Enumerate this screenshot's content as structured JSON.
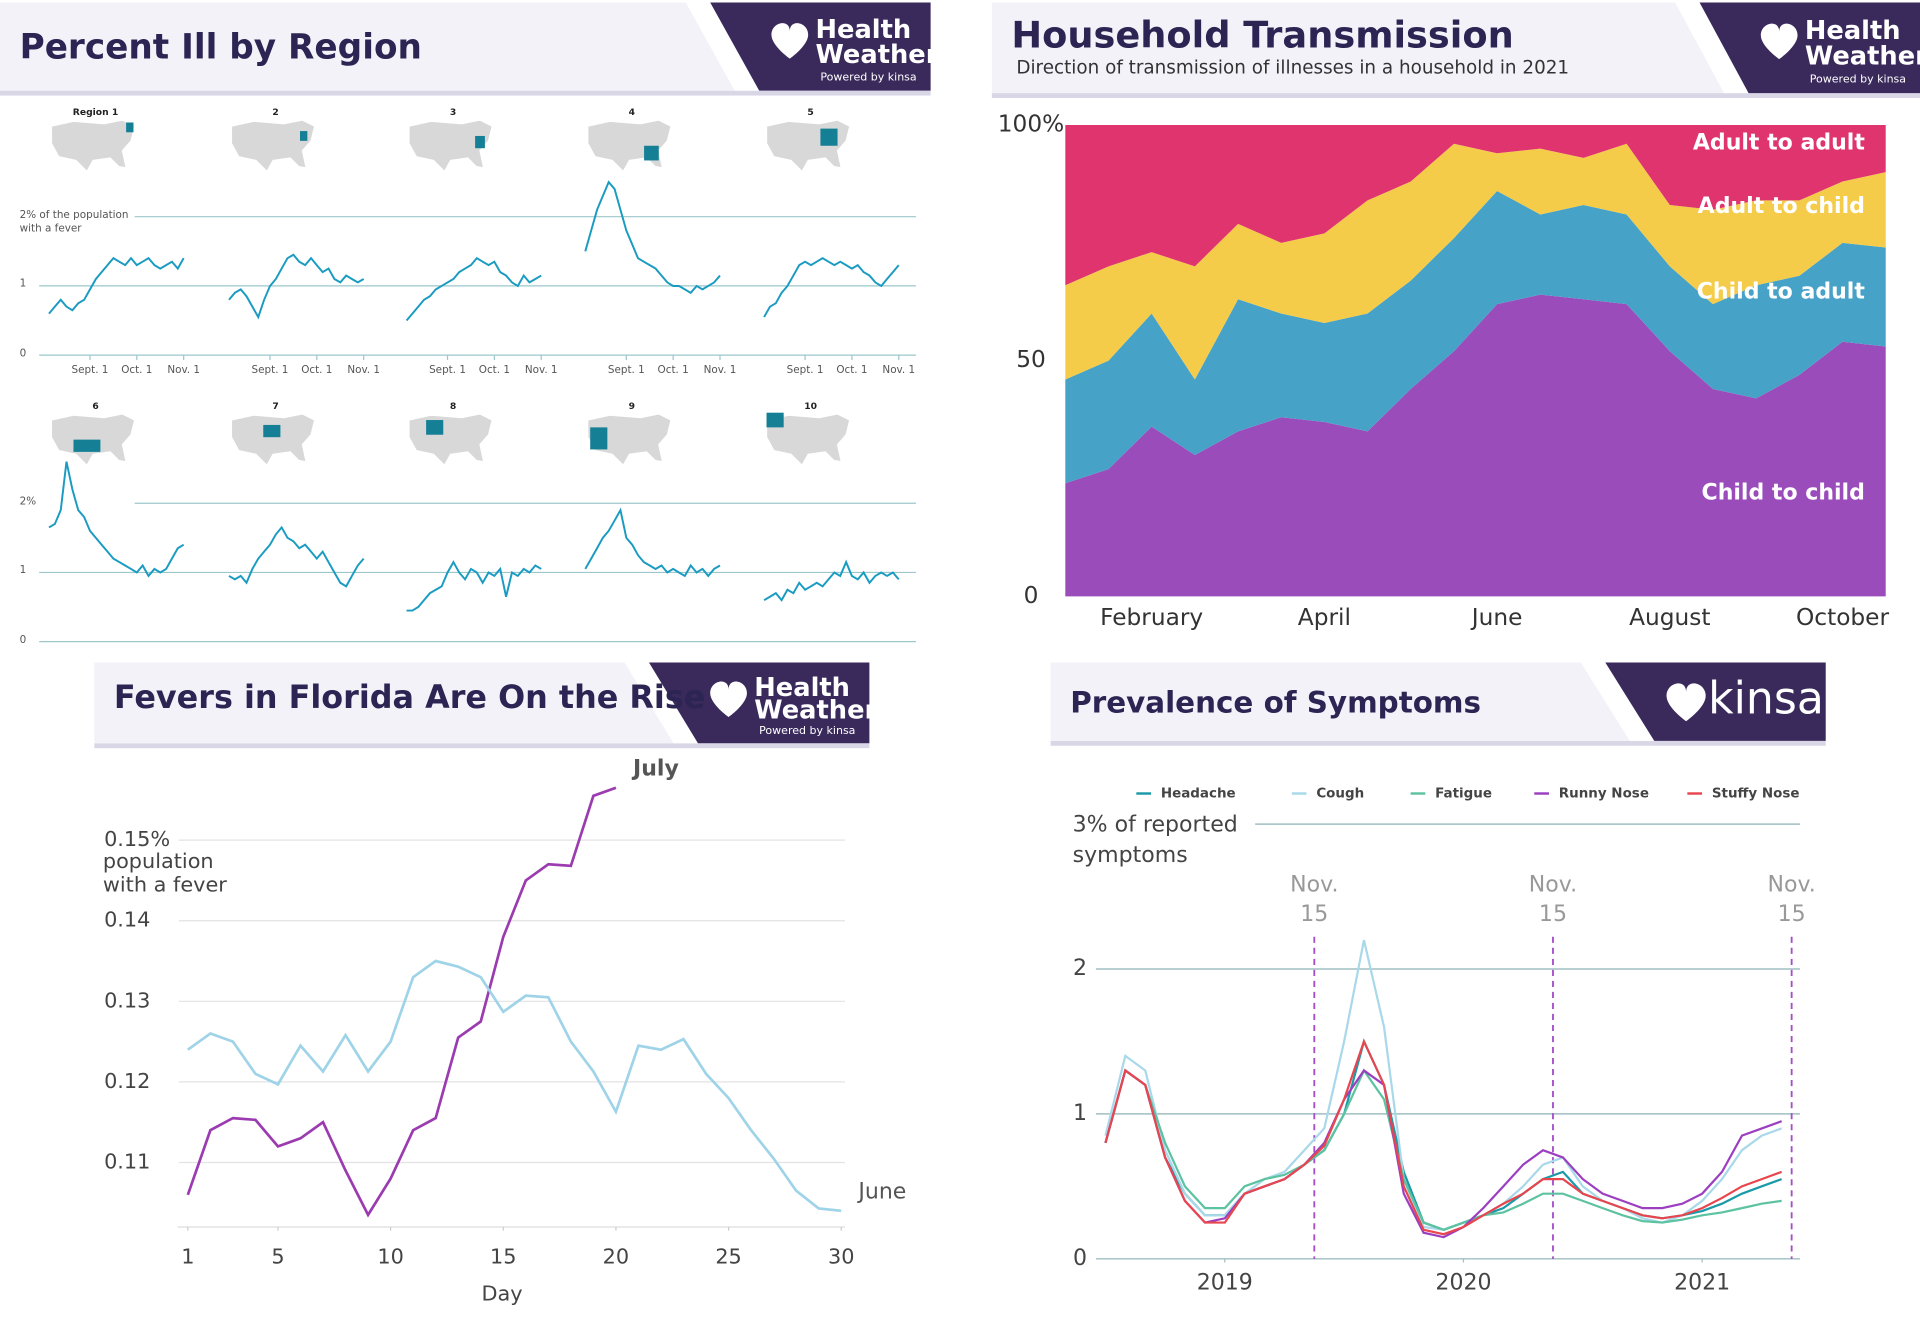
{
  "chart_data": [
    {
      "type": "small-multiples",
      "title": "Percent Ill by Region",
      "brand": {
        "line1": "Health",
        "line2": "Weather",
        "tagline": "Powered by kinsa"
      },
      "color": "#1a9bc1",
      "xlim": [
        0,
        23
      ],
      "ylim": [
        0,
        2.6
      ],
      "xticks": [
        {
          "value": 7,
          "label": "Sept. 1"
        },
        {
          "value": 15,
          "label": "Oct. 1"
        },
        {
          "value": 23,
          "label": "Nov. 1"
        }
      ],
      "rows": [
        {
          "yticks": [
            0,
            1,
            {
              "value": 2,
              "label": "2% of the population with a fever"
            }
          ],
          "series": [
            {
              "name": "Region 1",
              "values": [
                0.6,
                0.7,
                0.8,
                0.7,
                0.65,
                0.75,
                0.8,
                0.95,
                1.1,
                1.2,
                1.3,
                1.4,
                1.35,
                1.3,
                1.4,
                1.3,
                1.35,
                1.4,
                1.3,
                1.25,
                1.3,
                1.35,
                1.25,
                1.4
              ]
            },
            {
              "name": "2",
              "values": [
                0.8,
                0.9,
                0.95,
                0.85,
                0.7,
                0.55,
                0.8,
                1.0,
                1.1,
                1.25,
                1.4,
                1.45,
                1.35,
                1.3,
                1.4,
                1.3,
                1.2,
                1.25,
                1.1,
                1.05,
                1.15,
                1.1,
                1.05,
                1.1
              ]
            },
            {
              "name": "3",
              "values": [
                0.5,
                0.6,
                0.7,
                0.8,
                0.85,
                0.95,
                1.0,
                1.05,
                1.1,
                1.2,
                1.25,
                1.3,
                1.4,
                1.35,
                1.3,
                1.35,
                1.2,
                1.15,
                1.05,
                1.0,
                1.15,
                1.05,
                1.1,
                1.15
              ]
            },
            {
              "name": "4",
              "values": [
                1.5,
                1.8,
                2.1,
                2.3,
                2.5,
                2.4,
                2.1,
                1.8,
                1.6,
                1.4,
                1.35,
                1.3,
                1.25,
                1.15,
                1.05,
                1.0,
                1.0,
                0.95,
                0.9,
                1.0,
                0.95,
                1.0,
                1.05,
                1.15
              ]
            },
            {
              "name": "5",
              "values": [
                0.55,
                0.7,
                0.75,
                0.9,
                1.0,
                1.15,
                1.3,
                1.35,
                1.3,
                1.35,
                1.4,
                1.35,
                1.3,
                1.35,
                1.3,
                1.25,
                1.3,
                1.2,
                1.15,
                1.05,
                1.0,
                1.1,
                1.2,
                1.3
              ]
            }
          ]
        },
        {
          "yticks": [
            0,
            1,
            {
              "value": 2,
              "label": "2%"
            }
          ],
          "series": [
            {
              "name": "6",
              "values": [
                1.65,
                1.7,
                1.9,
                2.6,
                2.2,
                1.9,
                1.8,
                1.6,
                1.5,
                1.4,
                1.3,
                1.2,
                1.15,
                1.1,
                1.05,
                1.0,
                1.1,
                0.95,
                1.05,
                1.0,
                1.05,
                1.2,
                1.35,
                1.4
              ]
            },
            {
              "name": "7",
              "values": [
                0.95,
                0.9,
                0.95,
                0.85,
                1.05,
                1.2,
                1.3,
                1.4,
                1.55,
                1.65,
                1.5,
                1.45,
                1.35,
                1.4,
                1.3,
                1.2,
                1.3,
                1.15,
                1.0,
                0.85,
                0.8,
                0.95,
                1.1,
                1.2
              ]
            },
            {
              "name": "8",
              "values": [
                0.45,
                0.45,
                0.5,
                0.6,
                0.7,
                0.75,
                0.8,
                1.0,
                1.15,
                1.0,
                0.9,
                1.05,
                1.0,
                0.85,
                1.0,
                0.95,
                1.05,
                0.65,
                1.0,
                0.95,
                1.05,
                1.0,
                1.1,
                1.05
              ]
            },
            {
              "name": "9",
              "values": [
                1.05,
                1.2,
                1.35,
                1.5,
                1.6,
                1.75,
                1.9,
                1.5,
                1.4,
                1.25,
                1.15,
                1.1,
                1.05,
                1.1,
                1.0,
                1.05,
                1.0,
                0.95,
                1.1,
                1.0,
                1.05,
                0.95,
                1.05,
                1.1
              ]
            },
            {
              "name": "10",
              "values": [
                0.6,
                0.65,
                0.7,
                0.6,
                0.75,
                0.7,
                0.85,
                0.75,
                0.8,
                0.85,
                0.8,
                0.9,
                1.0,
                0.95,
                1.15,
                0.95,
                0.9,
                1.0,
                0.85,
                0.95,
                1.0,
                0.95,
                1.0,
                0.9
              ]
            }
          ]
        }
      ]
    },
    {
      "type": "stacked-area",
      "title": "Household Transmission",
      "subtitle": "Direction of transmission of illnesses in a household in 2021",
      "brand": {
        "line1": "Health",
        "line2": "Weather",
        "tagline": "Powered by kinsa"
      },
      "categories": [
        null,
        null,
        "February",
        null,
        null,
        null,
        "April",
        null,
        null,
        null,
        "June",
        null,
        null,
        null,
        "August",
        null,
        null,
        null,
        "October",
        null
      ],
      "ylim": [
        0,
        100
      ],
      "yticks": [
        {
          "value": 100,
          "label": "100%"
        },
        50,
        0
      ],
      "series": [
        {
          "name": "Child to child",
          "color": "#9a4cba",
          "values": [
            24,
            27,
            36,
            30,
            35,
            38,
            37,
            35,
            44,
            52,
            62,
            64,
            63,
            62,
            52,
            44,
            42,
            47,
            54,
            53
          ]
        },
        {
          "name": "Child to adult",
          "color": "#47a2c8",
          "values": [
            22,
            23,
            24,
            16,
            28,
            22,
            21,
            25,
            23,
            24,
            24,
            17,
            20,
            19,
            18,
            18,
            24,
            21,
            21,
            21
          ]
        },
        {
          "name": "Adult to child",
          "color": "#f4cc4a",
          "values": [
            20,
            20,
            13,
            24,
            16,
            15,
            19,
            24,
            21,
            20,
            8,
            14,
            10,
            15,
            13,
            20,
            18,
            16,
            13,
            16
          ]
        },
        {
          "name": "Adult to adult",
          "color": "#e0346f",
          "values": [
            34,
            30,
            27,
            30,
            21,
            25,
            23,
            16,
            12,
            4,
            6,
            5,
            7,
            4,
            17,
            18,
            16,
            16,
            12,
            10
          ]
        }
      ]
    },
    {
      "type": "line",
      "title": "Fevers in Florida Are On the Rise",
      "brand": {
        "line1": "Health",
        "line2": "Weather",
        "tagline": "Powered by kinsa"
      },
      "x_label": "Day",
      "y_annotation": "population with a fever",
      "x": [
        1,
        2,
        3,
        4,
        5,
        6,
        7,
        8,
        9,
        10,
        11,
        12,
        13,
        14,
        15,
        16,
        17,
        18,
        19,
        20,
        21,
        22,
        23,
        24,
        25,
        26,
        27,
        28,
        29,
        30
      ],
      "xlim": [
        0,
        30
      ],
      "xticks": [
        1,
        5,
        10,
        15,
        20,
        25,
        30
      ],
      "ylim": [
        0.102,
        0.157
      ],
      "yticks": [
        0.11,
        0.12,
        0.13,
        0.14,
        {
          "value": 0.15,
          "label": "0.15%"
        }
      ],
      "grid": true,
      "series": [
        {
          "name": "July",
          "color": "#9b3bb0",
          "values": [
            0.106,
            0.114,
            0.1155,
            0.1153,
            0.112,
            0.113,
            0.115,
            0.109,
            0.1035,
            0.108,
            0.114,
            0.1155,
            0.1255,
            0.1275,
            0.138,
            0.145,
            0.147,
            0.1468,
            0.1555,
            0.1565,
            null,
            null,
            null,
            null,
            null,
            null,
            null,
            null,
            null,
            null
          ]
        },
        {
          "name": "June",
          "color": "#9fd3e8",
          "values": [
            0.124,
            0.126,
            0.125,
            0.121,
            0.1197,
            0.1245,
            0.1213,
            0.1258,
            0.1213,
            0.125,
            0.133,
            0.135,
            0.1343,
            0.133,
            0.1287,
            0.1307,
            0.1305,
            0.125,
            0.1213,
            0.1163,
            0.1245,
            0.124,
            0.1253,
            0.121,
            0.118,
            0.114,
            0.1105,
            0.1065,
            0.1043,
            0.104
          ]
        }
      ]
    },
    {
      "type": "line",
      "title": "Prevalence of Symptoms",
      "brand": {
        "line1": "kinsa"
      },
      "x": [
        2019,
        2019.083,
        2019.167,
        2019.25,
        2019.333,
        2019.417,
        2019.5,
        2019.583,
        2019.667,
        2019.75,
        2019.833,
        2019.917,
        2020,
        2020.083,
        2020.167,
        2020.25,
        2020.333,
        2020.417,
        2020.5,
        2020.583,
        2020.667,
        2020.75,
        2020.833,
        2020.917,
        2021,
        2021.083,
        2021.167,
        2021.25,
        2021.333,
        2021.417,
        2021.5,
        2021.583,
        2021.667,
        2021.75,
        2021.833
      ],
      "xlim": [
        2018.96,
        2021.91
      ],
      "xticks": [
        {
          "value": 2019.5,
          "label": "2019"
        },
        {
          "value": 2020.5,
          "label": "2020"
        },
        {
          "value": 2021.5,
          "label": "2021"
        }
      ],
      "ylim": [
        0,
        3
      ],
      "yticks": [
        0,
        1,
        2,
        {
          "value": 3,
          "label": "3% of reported symptoms"
        }
      ],
      "grid": true,
      "annotations": [
        {
          "text": "Nov. 15",
          "x": 2019.875
        },
        {
          "text": "Nov. 15",
          "x": 2020.875
        },
        {
          "text": "Nov. 15",
          "x": 2021.875
        }
      ],
      "series": [
        {
          "name": "Headache",
          "color": "#1a9aa8",
          "values": [
            0.8,
            1.3,
            1.2,
            0.7,
            0.45,
            0.3,
            0.3,
            0.45,
            0.5,
            0.55,
            0.65,
            0.75,
            1.0,
            1.5,
            1.2,
            0.6,
            0.25,
            0.2,
            0.25,
            0.3,
            0.35,
            0.45,
            0.55,
            0.6,
            0.45,
            0.4,
            0.35,
            0.3,
            0.28,
            0.3,
            0.33,
            0.38,
            0.45,
            0.5,
            0.55
          ]
        },
        {
          "name": "Cough",
          "color": "#a8d8ea",
          "values": [
            0.85,
            1.4,
            1.3,
            0.75,
            0.45,
            0.3,
            0.3,
            0.45,
            0.55,
            0.6,
            0.75,
            0.9,
            1.5,
            2.2,
            1.6,
            0.55,
            0.22,
            0.2,
            0.25,
            0.3,
            0.38,
            0.5,
            0.65,
            0.7,
            0.5,
            0.4,
            0.35,
            0.28,
            0.25,
            0.3,
            0.4,
            0.55,
            0.75,
            0.85,
            0.9
          ]
        },
        {
          "name": "Fatigue",
          "color": "#5cc2a0",
          "values": [
            0.8,
            1.3,
            1.2,
            0.8,
            0.5,
            0.35,
            0.35,
            0.5,
            0.55,
            0.58,
            0.65,
            0.75,
            1.0,
            1.3,
            1.1,
            0.55,
            0.25,
            0.2,
            0.25,
            0.3,
            0.32,
            0.38,
            0.45,
            0.45,
            0.4,
            0.35,
            0.3,
            0.26,
            0.25,
            0.27,
            0.3,
            0.32,
            0.35,
            0.38,
            0.4
          ]
        },
        {
          "name": "Runny Nose",
          "color": "#9b3fc0",
          "values": [
            0.8,
            1.3,
            1.2,
            0.7,
            0.4,
            0.25,
            0.28,
            0.45,
            0.5,
            0.55,
            0.65,
            0.8,
            1.1,
            1.3,
            1.2,
            0.45,
            0.18,
            0.15,
            0.22,
            0.35,
            0.5,
            0.65,
            0.75,
            0.7,
            0.55,
            0.45,
            0.4,
            0.35,
            0.35,
            0.38,
            0.45,
            0.6,
            0.85,
            0.9,
            0.95
          ]
        },
        {
          "name": "Stuffy Nose",
          "color": "#e8464e",
          "values": [
            0.8,
            1.3,
            1.2,
            0.7,
            0.4,
            0.25,
            0.25,
            0.45,
            0.5,
            0.55,
            0.65,
            0.78,
            1.1,
            1.5,
            1.2,
            0.5,
            0.2,
            0.17,
            0.22,
            0.3,
            0.38,
            0.45,
            0.55,
            0.55,
            0.45,
            0.4,
            0.35,
            0.3,
            0.28,
            0.3,
            0.35,
            0.42,
            0.5,
            0.55,
            0.6
          ]
        }
      ]
    }
  ]
}
